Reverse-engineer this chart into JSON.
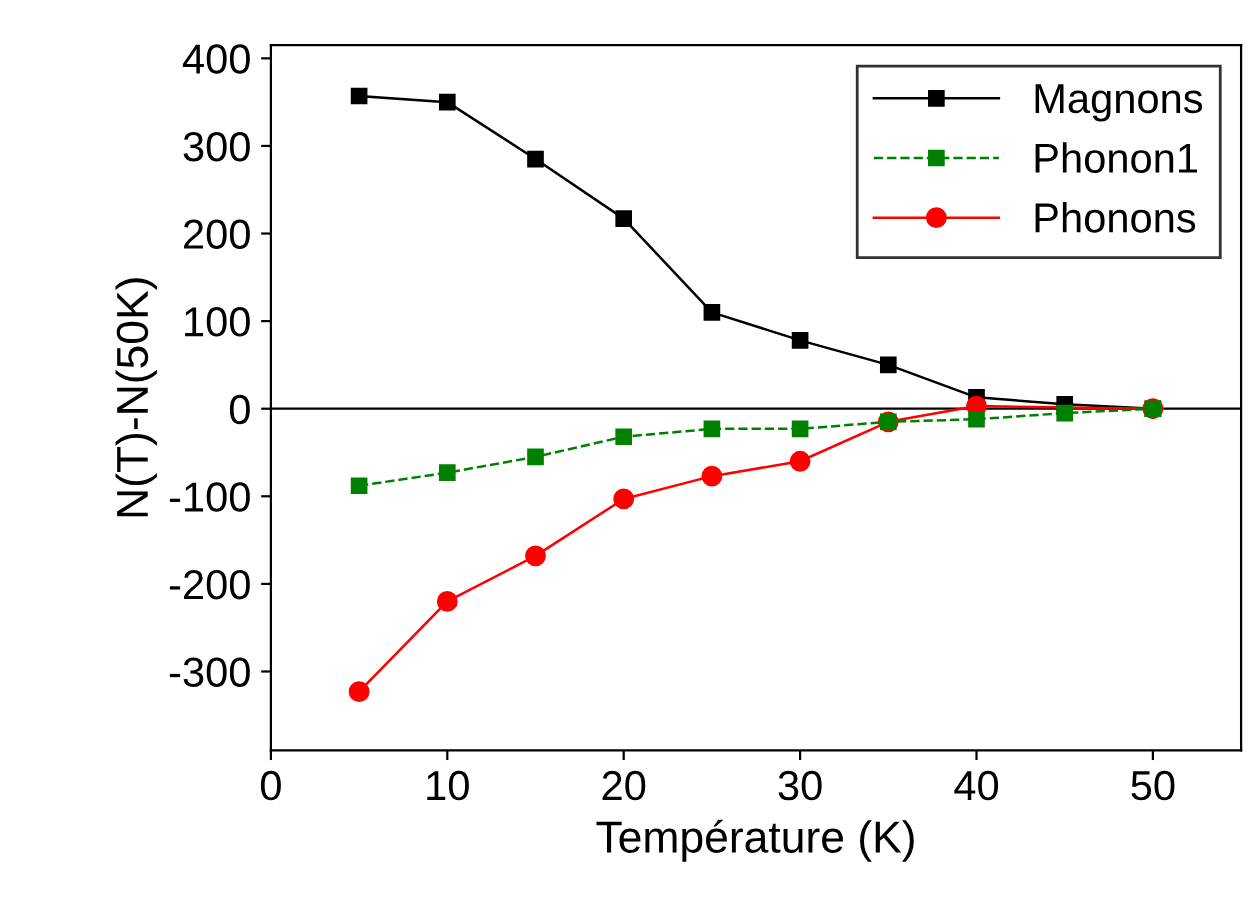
{
  "chart_data": {
    "type": "line",
    "xlabel": "Température (K)",
    "ylabel": "N(T)-N(50K)",
    "xlim": [
      0,
      55
    ],
    "xticks": [
      0,
      10,
      20,
      30,
      40,
      50
    ],
    "ylim": [
      -390,
      415
    ],
    "yticks": [
      -300,
      -200,
      -100,
      0,
      100,
      200,
      300,
      400
    ],
    "series": [
      {
        "name": "Magnons",
        "color": "#000000",
        "marker": "square",
        "line_style": "solid",
        "x": [
          5,
          10,
          15,
          20,
          25,
          30,
          35,
          40,
          45,
          50
        ],
        "values": [
          357,
          350,
          285,
          217,
          110,
          78,
          50,
          13,
          5,
          0
        ]
      },
      {
        "name": "Phonon1",
        "color": "#008000",
        "marker": "square",
        "line_style": "dashed",
        "x": [
          5,
          10,
          15,
          20,
          25,
          30,
          35,
          40,
          45,
          50
        ],
        "values": [
          -88,
          -73,
          -55,
          -32,
          -23,
          -23,
          -15,
          -12,
          -5,
          0
        ]
      },
      {
        "name": "Phonons",
        "color": "#ff0000",
        "marker": "circle",
        "line_style": "solid",
        "x": [
          5,
          10,
          15,
          20,
          25,
          30,
          35,
          40,
          50
        ],
        "values": [
          -323,
          -220,
          -168,
          -103,
          -77,
          -60,
          -15,
          3,
          0
        ]
      }
    ],
    "ref_lines": [
      {
        "axis": "y",
        "value": 0,
        "color": "#000000",
        "line_style": "solid"
      }
    ],
    "legend": "top right",
    "grid": false
  }
}
